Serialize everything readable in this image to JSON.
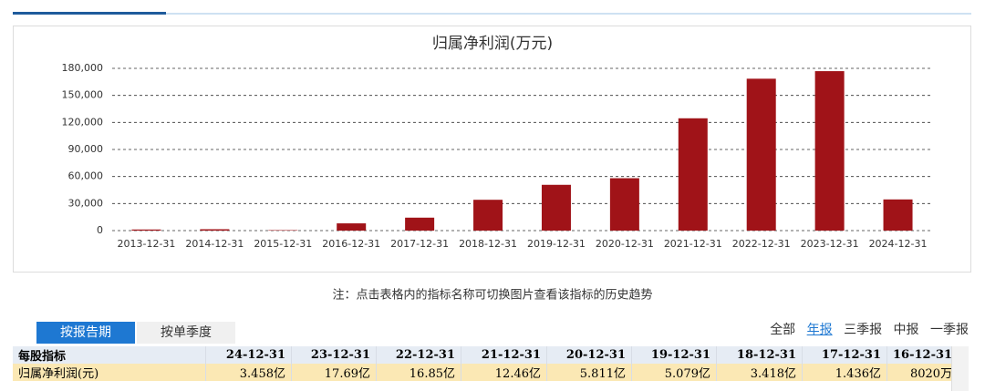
{
  "chart_data": {
    "type": "bar",
    "title": "归属净利润(万元)",
    "categories": [
      "2013-12-31",
      "2014-12-31",
      "2015-12-31",
      "2016-12-31",
      "2017-12-31",
      "2018-12-31",
      "2019-12-31",
      "2020-12-31",
      "2021-12-31",
      "2022-12-31",
      "2023-12-31",
      "2024-12-31"
    ],
    "values": [
      1200,
      1500,
      500,
      8020,
      14360,
      34180,
      50790,
      58110,
      124600,
      168500,
      176900,
      34580
    ],
    "color": "#a01318",
    "ylim": [
      0,
      180000
    ],
    "yticks": [
      0,
      {
        "value": 30000,
        "label": "30,000"
      },
      {
        "value": 60000,
        "label": "60,000"
      },
      {
        "value": 90000,
        "label": "90,000"
      },
      {
        "value": 120000,
        "label": "120,000"
      },
      {
        "value": 150000,
        "label": "150,000"
      },
      {
        "value": 180000,
        "label": "180,000"
      }
    ],
    "grid": true
  },
  "note": "注：点击表格内的指标名称可切换图片查看该指标的历史趋势",
  "tabs": [
    "按报告期",
    "按单季度"
  ],
  "period_links": [
    "全部",
    "年报",
    "三季报",
    "中报",
    "一季报"
  ],
  "table": {
    "header": [
      "每股指标",
      "24-12-31",
      "23-12-31",
      "22-12-31",
      "21-12-31",
      "20-12-31",
      "19-12-31",
      "18-12-31",
      "17-12-31",
      "16-12-31"
    ],
    "rows": [
      [
        "归属净利润(元)",
        "3.458亿",
        "17.69亿",
        "16.85亿",
        "12.46亿",
        "5.811亿",
        "5.079亿",
        "3.418亿",
        "1.436亿",
        "8020万"
      ]
    ]
  }
}
